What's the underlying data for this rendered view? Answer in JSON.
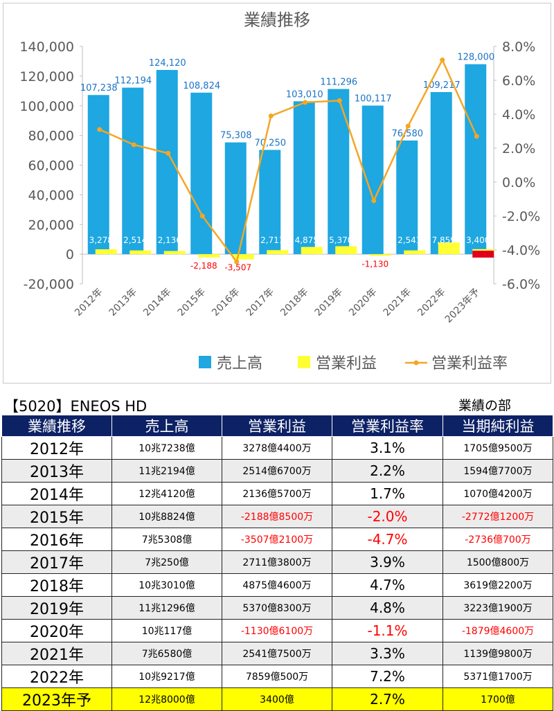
{
  "chart_data": {
    "type": "bar",
    "title": "業績推移",
    "categories": [
      "2012年",
      "2013年",
      "2014年",
      "2015年",
      "2016年",
      "2017年",
      "2018年",
      "2019年",
      "2020年",
      "2021年",
      "2022年",
      "2023年予"
    ],
    "series": [
      {
        "name": "売上高",
        "type": "bar",
        "axis": "left",
        "color": "#1ea7e1",
        "values": [
          107238,
          112194,
          124120,
          108824,
          75308,
          70250,
          103010,
          111296,
          100117,
          76580,
          109217,
          128000
        ]
      },
      {
        "name": "営業利益",
        "type": "bar",
        "axis": "left",
        "color": "#ffff33",
        "values": [
          3278,
          2514,
          2136,
          -2188,
          -3507,
          2711,
          4875,
          5370,
          -1130,
          2541,
          7859,
          3400
        ]
      },
      {
        "name": "営業利益率",
        "type": "line",
        "axis": "right",
        "color": "#f5a623",
        "values": [
          3.1,
          2.2,
          1.7,
          -2.0,
          -4.7,
          3.9,
          4.7,
          4.8,
          -1.1,
          3.3,
          7.2,
          2.7
        ]
      }
    ],
    "sales_labels": [
      "107,238",
      "112,194",
      "124,120",
      "108,824",
      "75,308",
      "70,250",
      "103,010",
      "111,296",
      "100,117",
      "76,580",
      "109,217",
      "128,000"
    ],
    "op_labels": [
      "3,278",
      "2,514",
      "2,136",
      "-2,188",
      "-3,507",
      "2,711",
      "4,875",
      "5,370",
      "-1,130",
      "2,541",
      "7,859",
      "3,400"
    ],
    "y_left": {
      "lim": [
        -20000,
        140000
      ],
      "ticks": [
        "-20,000",
        "0",
        "20,000",
        "40,000",
        "60,000",
        "80,000",
        "100,000",
        "120,000",
        "140,000"
      ]
    },
    "y_right": {
      "lim": [
        -6.0,
        8.0
      ],
      "ticks": [
        "-6.0%",
        "-4.0%",
        "-2.0%",
        "0.0%",
        "2.0%",
        "4.0%",
        "6.0%",
        "8.0%"
      ]
    },
    "legend_position": "bottom-right",
    "grid": false
  },
  "caption": {
    "company": "【5020】ENEOS HD",
    "section": "業績の部"
  },
  "table": {
    "headers": [
      "業績推移",
      "売上高",
      "営業利益",
      "営業利益率",
      "当期純利益"
    ],
    "rows": [
      {
        "year": "2012年",
        "sales": "10兆7238億",
        "op": "3278億4400万",
        "rate": "3.1%",
        "net": "1705億9500万",
        "op_neg": false,
        "rate_neg": false,
        "net_neg": false
      },
      {
        "year": "2013年",
        "sales": "11兆2194億",
        "op": "2514億6700万",
        "rate": "2.2%",
        "net": "1594億7700万",
        "op_neg": false,
        "rate_neg": false,
        "net_neg": false
      },
      {
        "year": "2014年",
        "sales": "12兆4120億",
        "op": "2136億5700万",
        "rate": "1.7%",
        "net": "1070億4200万",
        "op_neg": false,
        "rate_neg": false,
        "net_neg": false
      },
      {
        "year": "2015年",
        "sales": "10兆8824億",
        "op": "-2188億8500万",
        "rate": "-2.0%",
        "net": "-2772億1200万",
        "op_neg": true,
        "rate_neg": true,
        "net_neg": true
      },
      {
        "year": "2016年",
        "sales": "7兆5308億",
        "op": "-3507億2100万",
        "rate": "-4.7%",
        "net": "-2736億700万",
        "op_neg": true,
        "rate_neg": true,
        "net_neg": true
      },
      {
        "year": "2017年",
        "sales": "7兆250億",
        "op": "2711億3800万",
        "rate": "3.9%",
        "net": "1500億800万",
        "op_neg": false,
        "rate_neg": false,
        "net_neg": false
      },
      {
        "year": "2018年",
        "sales": "10兆3010億",
        "op": "4875億4600万",
        "rate": "4.7%",
        "net": "3619億2200万",
        "op_neg": false,
        "rate_neg": false,
        "net_neg": false
      },
      {
        "year": "2019年",
        "sales": "11兆1296億",
        "op": "5370億8300万",
        "rate": "4.8%",
        "net": "3223億1900万",
        "op_neg": false,
        "rate_neg": false,
        "net_neg": false
      },
      {
        "year": "2020年",
        "sales": "10兆117億",
        "op": "-1130億6100万",
        "rate": "-1.1%",
        "net": "-1879億4600万",
        "op_neg": true,
        "rate_neg": true,
        "net_neg": true
      },
      {
        "year": "2021年",
        "sales": "7兆6580億",
        "op": "2541億7500万",
        "rate": "3.3%",
        "net": "1139億9800万",
        "op_neg": false,
        "rate_neg": false,
        "net_neg": false
      },
      {
        "year": "2022年",
        "sales": "10兆9217億",
        "op": "7859億500万",
        "rate": "7.2%",
        "net": "5371億1700万",
        "op_neg": false,
        "rate_neg": false,
        "net_neg": false
      },
      {
        "year": "2023年予",
        "sales": "12兆8000億",
        "op": "3400億",
        "rate": "2.7%",
        "net": "1700億",
        "op_neg": false,
        "rate_neg": false,
        "net_neg": false,
        "forecast": true
      }
    ]
  },
  "colors": {
    "sales_bar": "#1ea7e1",
    "op_bar": "#ffff33",
    "rate_line": "#f5a623",
    "forecast_highlight": "#ffff00",
    "negative": "#ff0000",
    "header_bg": "#0d2165",
    "sales_label": "#1a73c8"
  }
}
